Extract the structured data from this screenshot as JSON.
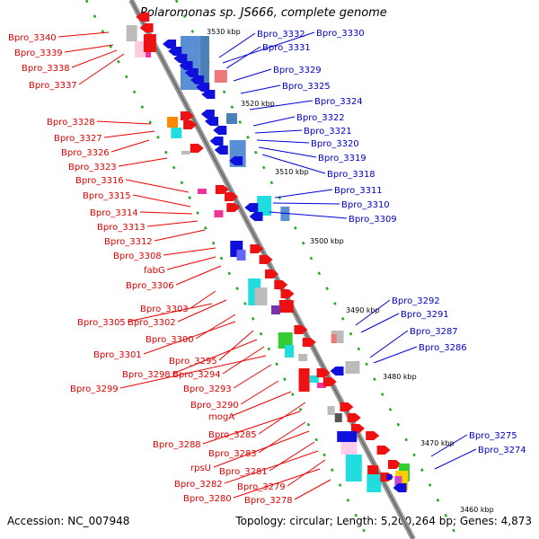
{
  "title": "Polaromonas sp. JS666, complete genome",
  "accession": "Accession: NC_007948",
  "topology": "Topology: circular; Length: 5,200,264 bp; Genes: 4,873",
  "colors": {
    "reverse_label": "#e00000",
    "forward_label": "#0000cc",
    "backbone": "#888888",
    "ticks": "#22aa22"
  },
  "scale_labels": [
    "3530 kbp",
    "3520 kbp",
    "3510 kbp",
    "3500 kbp",
    "3490 kbp",
    "3480 kbp",
    "3470 kbp",
    "3460 kbp"
  ],
  "left_labels": [
    "Bpro_3340",
    "Bpro_3339",
    "Bpro_3338",
    "Bpro_3337",
    "Bpro_3328",
    "Bpro_3327",
    "Bpro_3326",
    "Bpro_3323",
    "Bpro_3316",
    "Bpro_3315",
    "Bpro_3314",
    "Bpro_3313",
    "Bpro_3312",
    "Bpro_3308",
    "fabG",
    "Bpro_3306",
    "Bpro_3303",
    "Bpro_3302",
    "Bpro_3305",
    "Bpro_3300",
    "Bpro_3301",
    "Bpro_3295",
    "Bpro_3298",
    "Bpro_3294",
    "Bpro_3299",
    "Bpro_3293",
    "Bpro_3290",
    "mogA",
    "Bpro_3285",
    "Bpro_3288",
    "Bpro_3283",
    "rpsU",
    "Bpro_3281",
    "Bpro_3282",
    "Bpro_3279",
    "Bpro_3280",
    "Bpro_3278"
  ],
  "right_labels": [
    "Bpro_3332",
    "Bpro_3330",
    "Bpro_3331",
    "Bpro_3329",
    "Bpro_3325",
    "Bpro_3324",
    "Bpro_3322",
    "Bpro_3321",
    "Bpro_3320",
    "Bpro_3319",
    "Bpro_3318",
    "Bpro_3311",
    "Bpro_3310",
    "Bpro_3309",
    "Bpro_3292",
    "Bpro_3291",
    "Bpro_3287",
    "Bpro_3286",
    "Bpro_3275",
    "Bpro_3274"
  ]
}
